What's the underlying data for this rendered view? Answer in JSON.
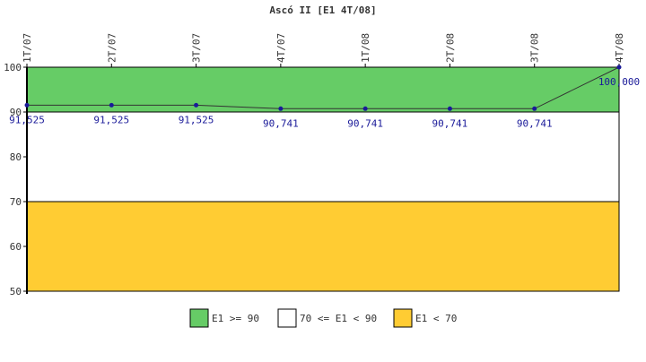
{
  "chart_data": {
    "type": "line",
    "title": "Ascó II [E1 4T/08]",
    "x": [
      "1T/07",
      "2T/07",
      "3T/07",
      "4T/07",
      "1T/08",
      "2T/08",
      "3T/08",
      "4T/08"
    ],
    "series": [
      {
        "values": [
          91.525,
          91.525,
          91.525,
          90.741,
          90.741,
          90.741,
          90.741,
          100.0
        ],
        "labels": [
          "91,525",
          "91,525",
          "91,525",
          "90,741",
          "90,741",
          "90,741",
          "90,741",
          "100,000"
        ],
        "color": "#1a1a99"
      }
    ],
    "ylim": [
      50,
      100
    ],
    "yticks": [
      "50",
      "60",
      "70",
      "80",
      "90",
      "100"
    ],
    "bands": [
      {
        "from": 90,
        "to": 100,
        "color": "#66cc66",
        "label": "E1 >= 90"
      },
      {
        "from": 70,
        "to": 90,
        "color": "#ffffff",
        "label": "70 <= E1 < 90"
      },
      {
        "from": 50,
        "to": 70,
        "color": "#ffcc33",
        "label": "E1 < 70"
      }
    ],
    "legend_position": "bottom",
    "grid": false
  }
}
